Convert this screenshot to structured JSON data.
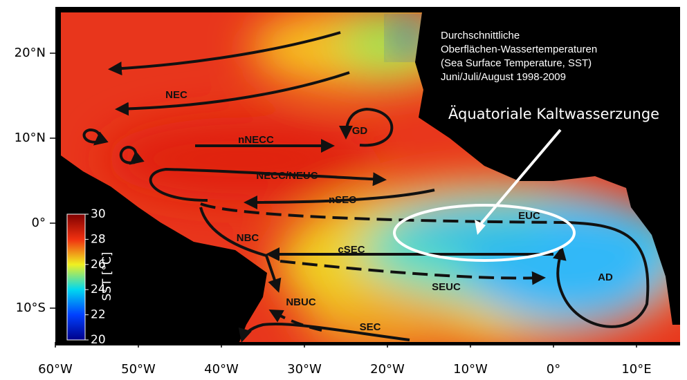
{
  "map": {
    "title_lines": [
      "Durchschnittliche",
      "Oberflächen-Wassertemperaturen",
      "(Sea Surface Temperature, SST)",
      " Juni/Juli/August 1998-2009"
    ],
    "annotation": "Äquatoriale Kaltwasserzunge",
    "currents": [
      "NEC",
      "nNECC",
      "GD",
      "NECC/NEUC",
      "nSEC",
      "EUC",
      "NBC",
      "cSEC",
      "SEUC",
      "AD",
      "NBUC",
      "SEC"
    ],
    "x_ticks": [
      {
        "value": -60,
        "label": "60°W"
      },
      {
        "value": -50,
        "label": "50°W"
      },
      {
        "value": -40,
        "label": "40°W"
      },
      {
        "value": -30,
        "label": "30°W"
      },
      {
        "value": -20,
        "label": "20°W"
      },
      {
        "value": -10,
        "label": "10°W"
      },
      {
        "value": 0,
        "label": "0°"
      },
      {
        "value": 10,
        "label": "10°E"
      }
    ],
    "y_ticks": [
      {
        "value": 20,
        "label": "20°N"
      },
      {
        "value": 10,
        "label": "10°N"
      },
      {
        "value": 0,
        "label": "0°"
      },
      {
        "value": -10,
        "label": "10°S"
      }
    ],
    "colorbar": {
      "label": "SST [°C]",
      "lim": [
        20,
        30
      ],
      "ticks": [
        20,
        22,
        24,
        26,
        28,
        30
      ]
    }
  }
}
